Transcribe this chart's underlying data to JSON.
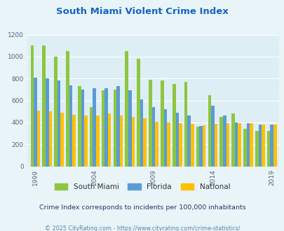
{
  "title": "South Miami Violent Crime Index",
  "title_color": "#1565c0",
  "subtitle": "Crime Index corresponds to incidents per 100,000 inhabitants",
  "subtitle_color": "#333366",
  "footer": "© 2025 CityRating.com - https://www.cityrating.com/crime-statistics/",
  "footer_color": "#5588aa",
  "years": [
    1999,
    2000,
    2001,
    2002,
    2003,
    2004,
    2005,
    2006,
    2007,
    2008,
    2009,
    2010,
    2011,
    2012,
    2013,
    2014,
    2015,
    2016,
    2017,
    2018,
    2019
  ],
  "south_miami": [
    1100,
    1100,
    1000,
    1050,
    730,
    540,
    690,
    700,
    1050,
    980,
    790,
    780,
    750,
    770,
    360,
    650,
    450,
    480,
    340,
    320,
    320
  ],
  "florida": [
    810,
    800,
    780,
    740,
    700,
    710,
    710,
    730,
    690,
    610,
    540,
    520,
    490,
    460,
    370,
    550,
    460,
    400,
    390,
    380,
    380
  ],
  "national": [
    510,
    500,
    490,
    470,
    460,
    460,
    480,
    460,
    450,
    435,
    405,
    400,
    390,
    385,
    375,
    385,
    390,
    395,
    395,
    380,
    380
  ],
  "south_miami_color": "#8dc63f",
  "florida_color": "#5b9bd5",
  "national_color": "#ffc000",
  "bg_color": "#e8f4f8",
  "plot_bg_color": "#ddeef5",
  "ylim": [
    0,
    1200
  ],
  "yticks": [
    0,
    200,
    400,
    600,
    800,
    1000,
    1200
  ],
  "xtick_years": [
    1999,
    2004,
    2009,
    2014,
    2019
  ],
  "legend_labels": [
    "South Miami",
    "Florida",
    "National"
  ],
  "bar_width": 0.27
}
